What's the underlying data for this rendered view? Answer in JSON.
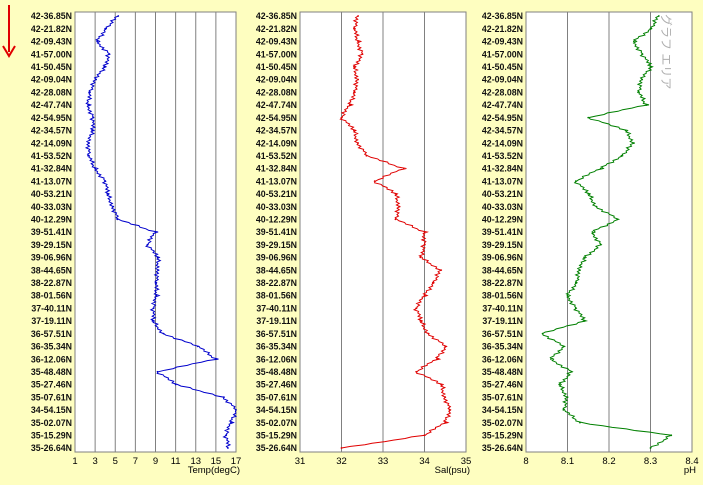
{
  "colors": {
    "background_yellow": "#fefec0",
    "plot_background": "#ffffff",
    "grid": "#808080",
    "temp_line": "#0000cc",
    "sal_line": "#e00000",
    "ph_line": "#008000",
    "arrow": "#e00000"
  },
  "icons": {
    "direction_arrow": "down-arrow-icon"
  },
  "overlay_label": "グラフ エリア",
  "chart_data": [
    {
      "type": "line",
      "orientation": "vertical-profile",
      "xlabel": "Temp(degC)",
      "xlim": [
        1,
        17
      ],
      "xticks": [
        1,
        3,
        5,
        7,
        9,
        11,
        13,
        15,
        17
      ],
      "y_tick_labels": [
        "42-36.85N",
        "42-21.82N",
        "42-09.43N",
        "41-57.00N",
        "41-50.45N",
        "42-09.04N",
        "42-28.08N",
        "42-47.74N",
        "42-54.95N",
        "42-34.57N",
        "42-14.09N",
        "41-53.52N",
        "41-32.84N",
        "41-13.07N",
        "40-53.21N",
        "40-33.03N",
        "40-12.29N",
        "39-51.41N",
        "39-29.15N",
        "39-06.96N",
        "38-44.65N",
        "38-22.87N",
        "38-01.56N",
        "37-40.11N",
        "37-19.11N",
        "36-57.51N",
        "36-35.34N",
        "36-12.06N",
        "35-48.48N",
        "35-27.46N",
        "35-07.61N",
        "34-54.15N",
        "35-02.07N",
        "35-15.29N",
        "35-26.64N"
      ],
      "series": [
        {
          "values": [
            5.3,
            4.0,
            3.2,
            4.4,
            3.9,
            3.1,
            2.4,
            2.3,
            2.8,
            2.7,
            2.4,
            2.3,
            3.0,
            4.0,
            4.2,
            4.8,
            5.2,
            9.0,
            8.2,
            9.2,
            9.3,
            9.0,
            9.1,
            8.8,
            8.7,
            9.8,
            13.2,
            15.0,
            9.2,
            11.0,
            15.8,
            17.0,
            16.5,
            16.0,
            16.2
          ]
        }
      ]
    },
    {
      "type": "line",
      "orientation": "vertical-profile",
      "xlabel": "Sal(psu)",
      "xlim": [
        31,
        35
      ],
      "xticks": [
        31,
        32,
        33,
        34,
        35
      ],
      "y_tick_labels": [
        "42-36.85N",
        "42-21.82N",
        "42-09.43N",
        "41-57.00N",
        "41-50.45N",
        "42-09.04N",
        "42-28.08N",
        "42-47.74N",
        "42-54.95N",
        "42-34.57N",
        "42-14.09N",
        "41-53.52N",
        "41-32.84N",
        "41-13.07N",
        "40-53.21N",
        "40-33.03N",
        "40-12.29N",
        "39-51.41N",
        "39-29.15N",
        "39-06.96N",
        "38-44.65N",
        "38-22.87N",
        "38-01.56N",
        "37-40.11N",
        "37-19.11N",
        "36-57.51N",
        "36-35.34N",
        "36-12.06N",
        "35-48.48N",
        "35-27.46N",
        "35-07.61N",
        "34-54.15N",
        "35-02.07N",
        "35-15.29N",
        "35-26.64N"
      ],
      "series": [
        {
          "values": [
            32.4,
            32.3,
            32.4,
            32.5,
            32.3,
            32.4,
            32.3,
            32.2,
            32.0,
            32.3,
            32.4,
            32.6,
            33.5,
            32.8,
            33.3,
            33.4,
            33.3,
            34.0,
            34.0,
            33.9,
            34.4,
            34.2,
            34.0,
            33.8,
            33.9,
            34.1,
            34.5,
            34.3,
            33.8,
            34.4,
            34.5,
            34.6,
            34.5,
            34.0,
            32.0
          ]
        }
      ]
    },
    {
      "type": "line",
      "orientation": "vertical-profile",
      "xlabel": "pH",
      "xlim": [
        8.0,
        8.4
      ],
      "xticks": [
        8,
        8.1,
        8.2,
        8.3,
        8.4
      ],
      "y_tick_labels": [
        "42-36.85N",
        "42-21.82N",
        "42-09.43N",
        "41-57.00N",
        "41-50.45N",
        "42-09.04N",
        "42-28.08N",
        "42-47.74N",
        "42-54.95N",
        "42-34.57N",
        "42-14.09N",
        "41-53.52N",
        "41-32.84N",
        "41-13.07N",
        "40-53.21N",
        "40-33.03N",
        "40-12.29N",
        "39-51.41N",
        "39-29.15N",
        "39-06.96N",
        "38-44.65N",
        "38-22.87N",
        "38-01.56N",
        "37-40.11N",
        "37-19.11N",
        "36-57.51N",
        "36-35.34N",
        "36-12.06N",
        "35-48.48N",
        "35-27.46N",
        "35-07.61N",
        "34-54.15N",
        "35-02.07N",
        "35-15.29N",
        "35-26.64N"
      ],
      "series": [
        {
          "values": [
            8.32,
            8.3,
            8.26,
            8.28,
            8.3,
            8.28,
            8.27,
            8.29,
            8.15,
            8.24,
            8.26,
            8.23,
            8.18,
            8.12,
            8.15,
            8.17,
            8.22,
            8.16,
            8.18,
            8.14,
            8.13,
            8.12,
            8.1,
            8.12,
            8.14,
            8.04,
            8.09,
            8.06,
            8.11,
            8.08,
            8.1,
            8.09,
            8.13,
            8.35,
            8.3
          ]
        }
      ]
    }
  ]
}
